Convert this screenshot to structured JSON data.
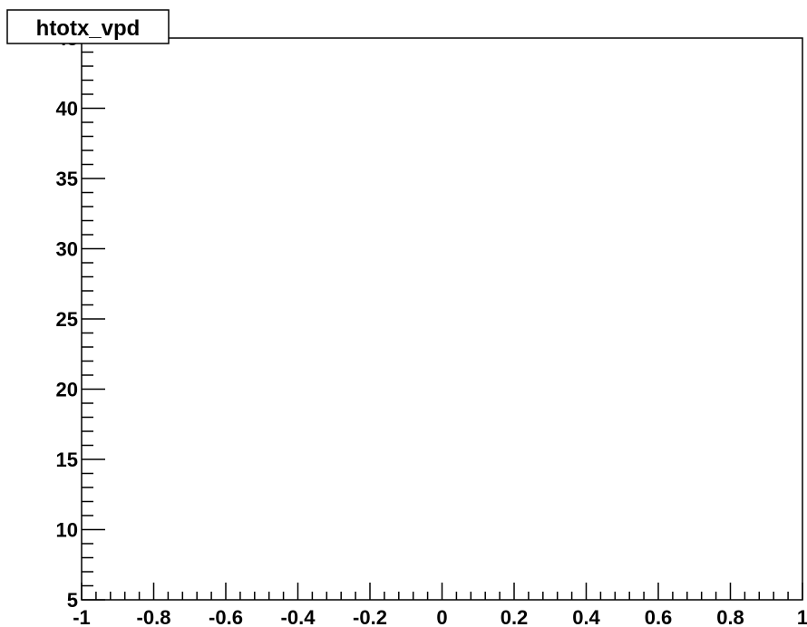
{
  "chart_data": {
    "type": "line",
    "title": "htotx_vpd",
    "xlabel": "",
    "ylabel": "",
    "xlim": [
      -1,
      1
    ],
    "ylim": [
      5,
      45
    ],
    "x_major_ticks": [
      -1,
      -0.8,
      -0.6,
      -0.4,
      -0.2,
      0,
      0.2,
      0.4,
      0.6,
      0.8,
      1
    ],
    "x_tick_labels": [
      "-1",
      "-0.8",
      "-0.6",
      "-0.4",
      "-0.2",
      "0",
      "0.2",
      "0.4",
      "0.6",
      "0.8",
      "1"
    ],
    "y_major_ticks": [
      5,
      10,
      15,
      20,
      25,
      30,
      35,
      40,
      45
    ],
    "y_tick_labels": [
      "5",
      "10",
      "15",
      "20",
      "25",
      "30",
      "35",
      "40",
      "45"
    ],
    "series": [],
    "grid": false,
    "colors": {
      "axis": "#000000",
      "background": "#ffffff"
    }
  }
}
